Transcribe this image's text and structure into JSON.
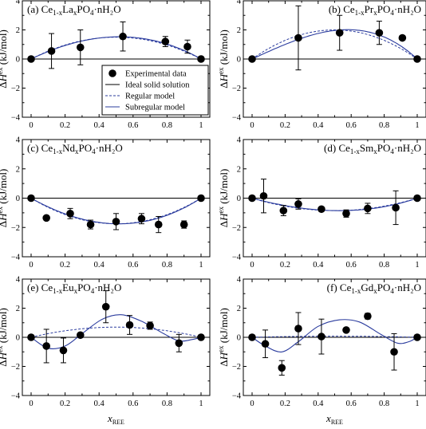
{
  "legend": {
    "experimental": "Experimental data",
    "ideal": "Ideal solid solution",
    "regular": "Regular model",
    "subregular": "Subregular model",
    "placement": "panel (a), lower center"
  },
  "axes": {
    "xlabel_main": "x",
    "xlabel_sub": "REE",
    "ylabel_pre": "ΔH",
    "ylabel_sup": "ex",
    "ylabel_post": " (kJ/mol)",
    "xticks": [
      "0",
      "0.2",
      "0.4",
      "0.6",
      "0.8",
      "1"
    ],
    "yticks": [
      "−4",
      "−2",
      "0",
      "2",
      "4"
    ]
  },
  "colors": {
    "model_line": "#2b3c9e",
    "ideal_line": "#000000",
    "marker": "#000000"
  },
  "chart_data": [
    {
      "type": "scatter",
      "panel": "a",
      "title_pre": "(a) Ce",
      "title_sub1": "1-x",
      "title_mid": "La",
      "title_sub2": "x",
      "title_post": "PO",
      "title_sub3": "4",
      "title_end": "·nH₂O",
      "xlim": [
        0,
        1
      ],
      "ylim": [
        -4,
        4
      ],
      "grid": false,
      "points": [
        {
          "x": 0,
          "y": 0,
          "err": 0
        },
        {
          "x": 0.12,
          "y": 0.55,
          "err": 1.2
        },
        {
          "x": 0.29,
          "y": 0.8,
          "err": 1.2
        },
        {
          "x": 0.54,
          "y": 1.55,
          "err": 1.0
        },
        {
          "x": 0.79,
          "y": 1.2,
          "err": 0.35
        },
        {
          "x": 0.92,
          "y": 0.85,
          "err": 0.45
        },
        {
          "x": 1,
          "y": 0,
          "err": 0
        }
      ],
      "regular_W": 6.0,
      "subregular_W": [
        5.6,
        6.6
      ]
    },
    {
      "type": "scatter",
      "panel": "b",
      "title_pre": "(b) Ce",
      "title_sub1": "1-x",
      "title_mid": "Pr",
      "title_sub2": "x",
      "title_post": "PO",
      "title_sub3": "4",
      "title_end": "·nH₂O",
      "xlim": [
        0,
        1
      ],
      "ylim": [
        -4,
        4
      ],
      "grid": false,
      "points": [
        {
          "x": 0,
          "y": 0,
          "err": 0
        },
        {
          "x": 0.28,
          "y": 1.45,
          "err": 2.2
        },
        {
          "x": 0.53,
          "y": 1.8,
          "err": 1.2
        },
        {
          "x": 0.77,
          "y": 1.8,
          "err": 0.8
        },
        {
          "x": 0.91,
          "y": 1.45,
          "err": 0
        },
        {
          "x": 1,
          "y": 0,
          "err": 0
        }
      ],
      "regular_W": 8.0,
      "subregular_W": [
        5.2,
        10.5
      ]
    },
    {
      "type": "scatter",
      "panel": "c",
      "title_pre": "(c) Ce",
      "title_sub1": "1-x",
      "title_mid": "Nd",
      "title_sub2": "x",
      "title_post": "PO",
      "title_sub3": "4",
      "title_end": "·nH₂O",
      "xlim": [
        0,
        1
      ],
      "ylim": [
        -4,
        4
      ],
      "grid": false,
      "points": [
        {
          "x": 0,
          "y": 0,
          "err": 0
        },
        {
          "x": 0.09,
          "y": -1.35,
          "err": 0
        },
        {
          "x": 0.23,
          "y": -1.05,
          "err": 0.35
        },
        {
          "x": 0.35,
          "y": -1.8,
          "err": 0.3
        },
        {
          "x": 0.5,
          "y": -1.6,
          "err": 0.55
        },
        {
          "x": 0.65,
          "y": -1.4,
          "err": 0.35
        },
        {
          "x": 0.75,
          "y": -1.8,
          "err": 0.55
        },
        {
          "x": 0.9,
          "y": -1.8,
          "err": 0.25
        },
        {
          "x": 1,
          "y": 0,
          "err": 0
        }
      ],
      "regular_W": -7.0,
      "subregular_W": [
        -6.5,
        -7.5
      ]
    },
    {
      "type": "scatter",
      "panel": "d",
      "title_pre": "(d) Ce",
      "title_sub1": "1-x",
      "title_mid": "Sm",
      "title_sub2": "x",
      "title_post": "PO",
      "title_sub3": "4",
      "title_end": "·nH₂O",
      "xlim": [
        0,
        1
      ],
      "ylim": [
        -4,
        4
      ],
      "grid": false,
      "points": [
        {
          "x": 0,
          "y": 0,
          "err": 0
        },
        {
          "x": 0.07,
          "y": 0.15,
          "err": 1.15
        },
        {
          "x": 0.19,
          "y": -0.85,
          "err": 0.35
        },
        {
          "x": 0.28,
          "y": -0.4,
          "err": 0.35
        },
        {
          "x": 0.42,
          "y": -0.75,
          "err": 0
        },
        {
          "x": 0.57,
          "y": -1.05,
          "err": 0.25
        },
        {
          "x": 0.7,
          "y": -0.7,
          "err": 0.35
        },
        {
          "x": 0.87,
          "y": -0.65,
          "err": 1.15
        },
        {
          "x": 1,
          "y": 0,
          "err": 0
        }
      ],
      "regular_W": -3.4,
      "subregular_W": [
        -3.0,
        -3.8
      ]
    },
    {
      "type": "scatter",
      "panel": "e",
      "title_pre": "(e) Ce",
      "title_sub1": "1-x",
      "title_mid": "Eu",
      "title_sub2": "x",
      "title_post": "PO",
      "title_sub3": "4",
      "title_end": "·nH₂O",
      "xlim": [
        0,
        1
      ],
      "ylim": [
        -4,
        4
      ],
      "grid": false,
      "points": [
        {
          "x": 0,
          "y": 0,
          "err": 0
        },
        {
          "x": 0.09,
          "y": -0.6,
          "err": 1.15
        },
        {
          "x": 0.19,
          "y": -0.9,
          "err": 0.85
        },
        {
          "x": 0.29,
          "y": 0.15,
          "err": 0
        },
        {
          "x": 0.44,
          "y": 2.1,
          "err": 1.1
        },
        {
          "x": 0.58,
          "y": 0.85,
          "err": 0.65
        },
        {
          "x": 0.7,
          "y": 0.8,
          "err": 0.25
        },
        {
          "x": 0.87,
          "y": -0.4,
          "err": 0.6
        },
        {
          "x": 1,
          "y": 0,
          "err": 0
        }
      ],
      "regular_W": 2.8,
      "subregular_points": [
        [
          0,
          0
        ],
        [
          0.1,
          -0.75
        ],
        [
          0.2,
          -0.6
        ],
        [
          0.3,
          0.25
        ],
        [
          0.42,
          1.25
        ],
        [
          0.53,
          1.55
        ],
        [
          0.65,
          1.1
        ],
        [
          0.78,
          0.25
        ],
        [
          0.87,
          -0.25
        ],
        [
          0.95,
          -0.15
        ],
        [
          1,
          0
        ]
      ]
    },
    {
      "type": "scatter",
      "panel": "f",
      "title_pre": "(f) Ce",
      "title_sub1": "1-x",
      "title_mid": "Gd",
      "title_sub2": "x",
      "title_post": "PO",
      "title_sub3": "4",
      "title_end": "·nH₂O",
      "xlim": [
        0,
        1
      ],
      "ylim": [
        -4,
        4
      ],
      "grid": false,
      "points": [
        {
          "x": 0,
          "y": 0,
          "err": 0
        },
        {
          "x": 0.08,
          "y": -0.45,
          "err": 0.95
        },
        {
          "x": 0.18,
          "y": -2.1,
          "err": 0.5
        },
        {
          "x": 0.28,
          "y": 0.6,
          "err": 1.1
        },
        {
          "x": 0.42,
          "y": 0.05,
          "err": 1.2
        },
        {
          "x": 0.57,
          "y": 0.5,
          "err": 0
        },
        {
          "x": 0.7,
          "y": 1.45,
          "err": 0.2
        },
        {
          "x": 0.86,
          "y": -1.0,
          "err": 1.25
        },
        {
          "x": 1,
          "y": 0,
          "err": 0
        }
      ],
      "regular_W": 0.3,
      "subregular_points": [
        [
          0,
          0
        ],
        [
          0.08,
          -0.6
        ],
        [
          0.18,
          -1.0
        ],
        [
          0.28,
          -0.3
        ],
        [
          0.4,
          0.75
        ],
        [
          0.53,
          1.2
        ],
        [
          0.65,
          1.05
        ],
        [
          0.78,
          0.2
        ],
        [
          0.88,
          -0.4
        ],
        [
          0.95,
          -0.3
        ],
        [
          1,
          0
        ]
      ]
    }
  ]
}
